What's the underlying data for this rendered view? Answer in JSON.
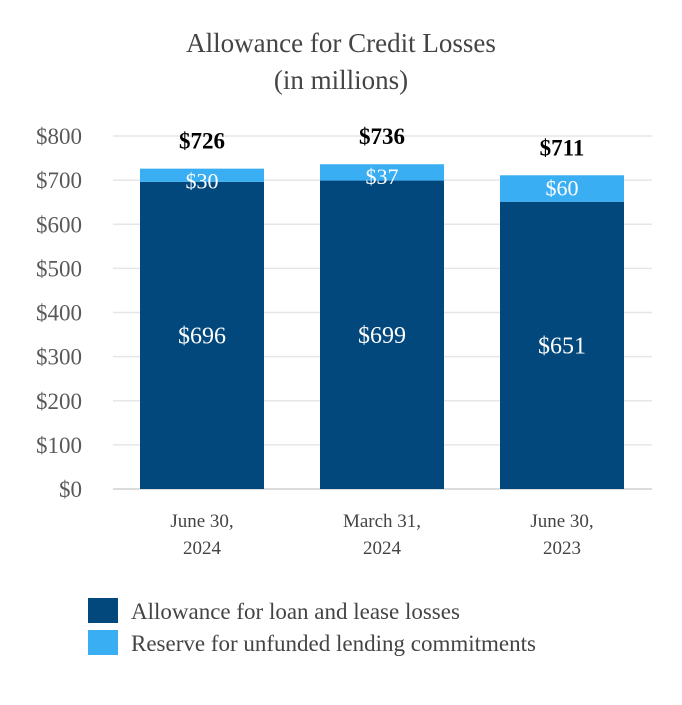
{
  "chart_data": {
    "type": "bar",
    "stacked": true,
    "title": "Allowance for Credit Losses",
    "subtitle": "(in millions)",
    "xlabel": "",
    "ylabel": "",
    "ylim": [
      0,
      800
    ],
    "yticks": [
      "$0",
      "$100",
      "$200",
      "$300",
      "$400",
      "$500",
      "$600",
      "$700",
      "$800"
    ],
    "grid": true,
    "legend_position": "bottom",
    "categories": [
      [
        "June 30,",
        "2024"
      ],
      [
        "March 31,",
        "2024"
      ],
      [
        "June 30,",
        "2023"
      ]
    ],
    "series": [
      {
        "name": "Allowance for loan and lease losses",
        "color": "#03487c",
        "values": [
          696,
          699,
          651
        ],
        "labels": [
          "$696",
          "$699",
          "$651"
        ]
      },
      {
        "name": "Reserve for unfunded lending commitments",
        "color": "#3aaef3",
        "values": [
          30,
          37,
          60
        ],
        "labels": [
          "$30",
          "$37",
          "$60"
        ]
      }
    ],
    "totals": [
      "$726",
      "$736",
      "$711"
    ]
  }
}
